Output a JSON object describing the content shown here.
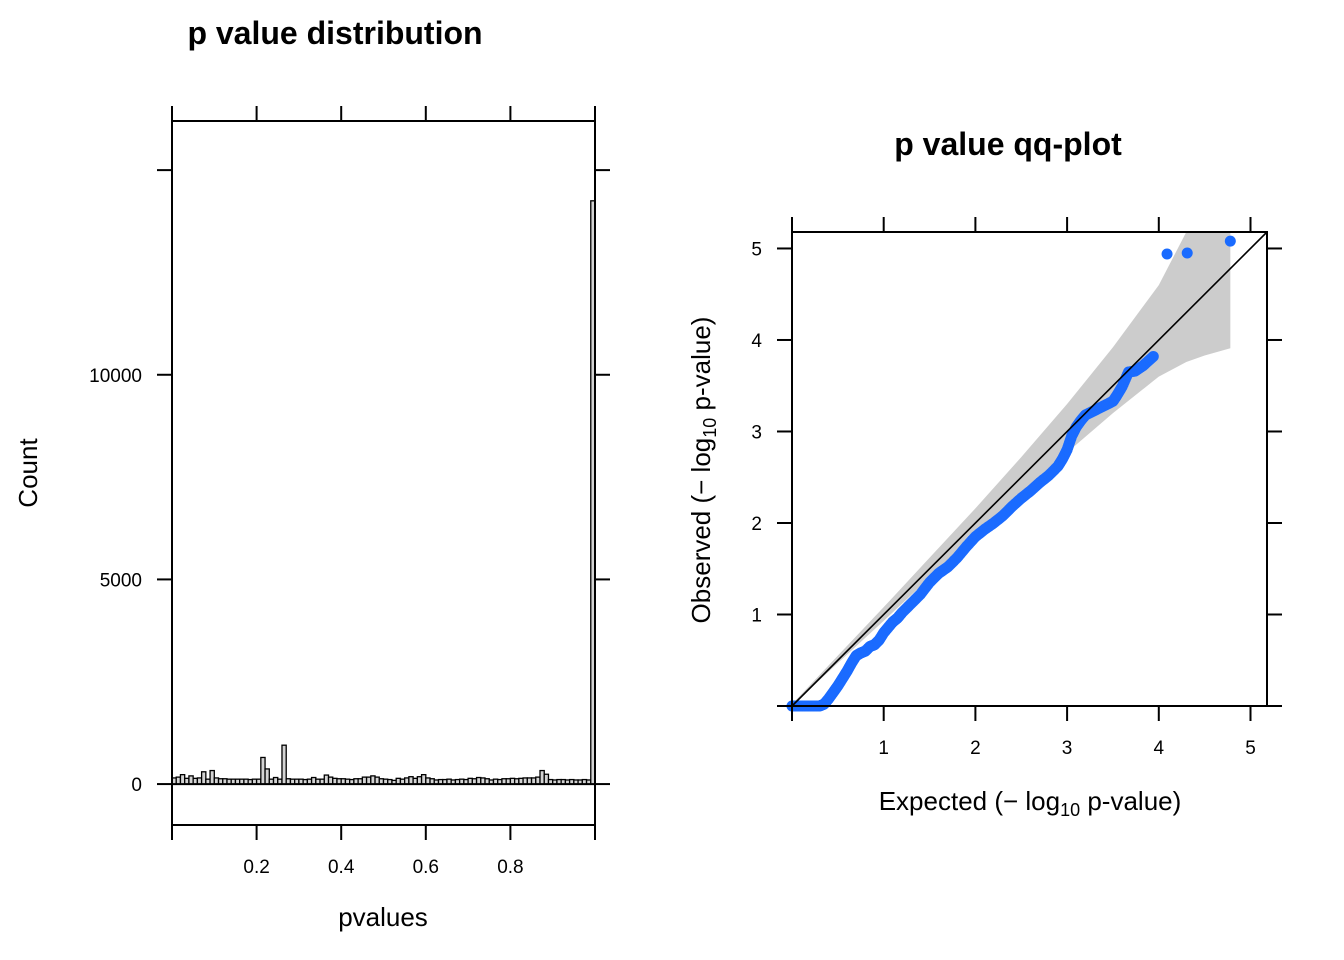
{
  "chart_data": [
    {
      "type": "bar",
      "title": "p value distribution",
      "xlabel": "pvalues",
      "ylabel": "Count",
      "xlim": [
        0,
        1
      ],
      "ylim": [
        -1000,
        16200
      ],
      "bin_width": 0.01,
      "x_ticks": [
        0.2,
        0.4,
        0.6,
        0.8
      ],
      "x_tick_labels": [
        "0.2",
        "0.4",
        "0.6",
        "0.8"
      ],
      "x_ticks_unlabeled": [
        0,
        1.0
      ],
      "y_ticks": [
        0,
        5000,
        10000
      ],
      "y_tick_labels": [
        "0",
        "5000",
        "10000"
      ],
      "y_ticks_unlabeled": [
        15000
      ],
      "bar_color": "#d3d3d3",
      "bar_edge_color": "#000000",
      "values": [
        150,
        170,
        230,
        140,
        200,
        140,
        150,
        300,
        120,
        330,
        150,
        130,
        130,
        120,
        120,
        120,
        120,
        120,
        110,
        120,
        120,
        650,
        370,
        120,
        160,
        120,
        950,
        130,
        120,
        120,
        120,
        110,
        120,
        160,
        120,
        120,
        220,
        170,
        140,
        130,
        130,
        120,
        110,
        130,
        130,
        170,
        170,
        200,
        170,
        130,
        120,
        110,
        90,
        140,
        120,
        150,
        180,
        140,
        180,
        230,
        150,
        130,
        100,
        110,
        110,
        120,
        100,
        110,
        120,
        110,
        140,
        130,
        160,
        150,
        130,
        100,
        120,
        110,
        130,
        130,
        140,
        130,
        140,
        150,
        150,
        150,
        170,
        330,
        240,
        110,
        100,
        110,
        110,
        100,
        110,
        100,
        100,
        110,
        100,
        14250
      ]
    },
    {
      "type": "scatter",
      "title": "p value qq-plot",
      "xlabel_prefix": "Expected (− log",
      "ylabel_prefix": "Observed (− log",
      "label_subscript": "10",
      "label_suffix": " p-value)",
      "xlim": [
        0,
        5.18
      ],
      "ylim": [
        0,
        5.18
      ],
      "x_ticks": [
        1,
        2,
        3,
        4,
        5
      ],
      "x_tick_labels": [
        "1",
        "2",
        "3",
        "4",
        "5"
      ],
      "y_ticks": [
        1,
        2,
        3,
        4,
        5
      ],
      "y_tick_labels": [
        "1",
        "2",
        "3",
        "4",
        "5"
      ],
      "point_color": "#1a6bff",
      "band_color": "#cccccc",
      "reference_line": "y = x",
      "confidence_band": {
        "x": [
          0.0,
          0.5,
          1.0,
          1.5,
          2.0,
          2.5,
          3.0,
          3.5,
          4.0,
          4.3,
          4.5,
          4.78
        ],
        "upper": [
          0.02,
          0.55,
          1.08,
          1.62,
          2.16,
          2.72,
          3.3,
          3.92,
          4.6,
          5.18,
          5.18,
          5.18
        ],
        "lower": [
          0.0,
          0.47,
          0.93,
          1.4,
          1.86,
          2.32,
          2.77,
          3.2,
          3.6,
          3.76,
          3.83,
          3.91
        ]
      },
      "points": {
        "x": [
          0.0,
          0.1,
          0.2,
          0.3,
          0.35,
          0.4,
          0.45,
          0.5,
          0.55,
          0.6,
          0.65,
          0.7,
          0.75,
          0.8,
          0.85,
          0.9,
          0.95,
          1.0,
          1.05,
          1.1,
          1.15,
          1.2,
          1.3,
          1.4,
          1.5,
          1.6,
          1.7,
          1.8,
          1.9,
          2.0,
          2.1,
          2.2,
          2.3,
          2.4,
          2.5,
          2.6,
          2.7,
          2.8,
          2.9,
          2.95,
          3.0,
          3.05,
          3.1,
          3.15,
          3.2,
          3.3,
          3.4,
          3.5,
          3.54,
          3.6,
          3.67,
          3.74,
          3.83,
          3.94,
          4.09,
          4.31,
          4.78
        ],
        "y": [
          0.0,
          0.0,
          0.0,
          0.0,
          0.02,
          0.08,
          0.15,
          0.22,
          0.3,
          0.38,
          0.47,
          0.55,
          0.58,
          0.6,
          0.65,
          0.67,
          0.72,
          0.8,
          0.86,
          0.92,
          0.96,
          1.02,
          1.12,
          1.22,
          1.35,
          1.45,
          1.52,
          1.62,
          1.74,
          1.85,
          1.93,
          2.0,
          2.08,
          2.18,
          2.27,
          2.35,
          2.44,
          2.52,
          2.62,
          2.7,
          2.8,
          2.95,
          3.05,
          3.12,
          3.18,
          3.23,
          3.28,
          3.33,
          3.39,
          3.49,
          3.65,
          3.66,
          3.72,
          3.82,
          4.94,
          4.95,
          5.08
        ]
      }
    }
  ]
}
